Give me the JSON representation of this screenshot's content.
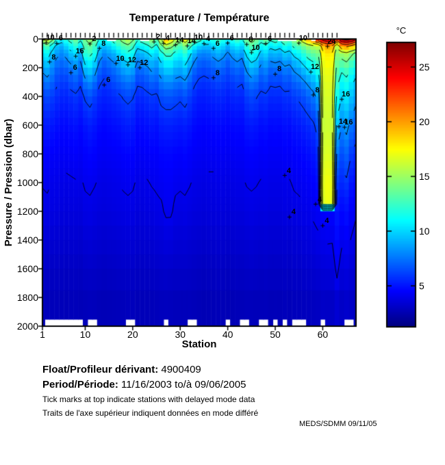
{
  "title": "Temperature / Température",
  "colorbar": {
    "unit_label": "°C",
    "tick_values": [
      5,
      10,
      15,
      20,
      25
    ],
    "tick_labels": [
      "5",
      "10",
      "15",
      "20",
      "25"
    ],
    "min": 1.25,
    "max": 27.25
  },
  "axes": {
    "x": {
      "label": "Station",
      "tick_values": [
        1,
        10,
        20,
        30,
        40,
        50,
        60
      ],
      "tick_labels": [
        "1",
        "10",
        "20",
        "30",
        "40",
        "50",
        "60"
      ],
      "min": 1,
      "max": 67
    },
    "y": {
      "label": "Pressure / Pression (dbar)",
      "tick_values": [
        0,
        200,
        400,
        600,
        800,
        1000,
        1200,
        1400,
        1600,
        1800,
        2000
      ],
      "tick_labels": [
        "0",
        "200",
        "400",
        "600",
        "800",
        "1000",
        "1200",
        "1400",
        "1600",
        "1800",
        "2000"
      ],
      "min": 0,
      "max": 2000
    }
  },
  "footer": {
    "float_label": "Float/Profileur dérivant:",
    "float_value": "4900409",
    "period_label": "Period/Période:",
    "period_value": "11/16/2003  to/à  09/06/2005",
    "note_en": "Tick marks at top indicate stations with delayed mode data",
    "note_fr": "Traits de l'axe supérieur indiquent données en mode différé",
    "credit": "MEDS/SDMM  09/11/05"
  },
  "chart_data": {
    "type": "heatmap",
    "title": "Temperature / Température",
    "xlabel": "Station",
    "ylabel": "Pressure / Pression (dbar)",
    "x_range": [
      1,
      67
    ],
    "y_range": [
      0,
      2000
    ],
    "value_range": [
      1.25,
      27.25
    ],
    "colormap": "jet",
    "contour_levels": [
      2,
      4,
      6,
      8,
      10,
      12,
      14,
      16,
      18,
      20,
      22,
      24,
      26
    ],
    "pressure_levels": [
      0,
      50,
      100,
      200,
      300,
      400,
      600,
      800,
      1000,
      1150,
      1200,
      1600,
      2000
    ],
    "temperatures": [
      [
        16.5,
        12,
        10.5,
        8.5,
        7,
        6,
        5,
        4.5,
        4.05,
        3.85,
        3.8,
        3.1,
        2.6
      ],
      [
        17,
        13,
        11,
        9,
        7.5,
        6.3,
        5.1,
        4.5,
        4.1,
        3.9,
        3.85,
        3.1,
        2.6
      ],
      [
        15,
        11,
        9.5,
        8,
        7,
        6,
        5,
        4.4,
        4,
        3.8,
        3.75,
        3,
        2.6
      ],
      [
        12,
        9.5,
        8.5,
        7,
        6.2,
        5.6,
        4.8,
        4.35,
        3.95,
        3.75,
        3.7,
        3,
        2.6
      ],
      [
        11,
        9,
        8,
        6.8,
        6,
        5.4,
        4.7,
        4.3,
        3.9,
        3.7,
        3.65,
        3,
        2.55
      ],
      [
        12,
        10,
        8.5,
        7,
        6,
        5.4,
        4.7,
        4.3,
        3.85,
        3.65,
        3.6,
        2.95,
        2.55
      ],
      [
        13,
        11,
        9.5,
        7.5,
        6.5,
        5.6,
        4.8,
        4.35,
        3.9,
        3.7,
        3.65,
        3,
        2.6
      ],
      [
        14,
        12,
        10,
        8,
        6.8,
        5.8,
        4.9,
        4.4,
        3.95,
        3.7,
        3.65,
        3,
        2.6
      ],
      [
        12.5,
        10.5,
        9,
        7.2,
        6.2,
        5.5,
        4.7,
        4.3,
        3.9,
        3.65,
        3.6,
        2.95,
        2.55
      ],
      [
        14,
        13,
        12,
        9.5,
        7.5,
        6.2,
        5,
        4.5,
        4.1,
        3.85,
        3.8,
        3.05,
        2.6
      ],
      [
        15,
        13.5,
        12.5,
        10,
        8,
        6.5,
        5.2,
        4.6,
        4.15,
        3.9,
        3.85,
        3.1,
        2.6
      ],
      [
        14,
        12.5,
        11.5,
        9,
        7.2,
        6,
        5,
        4.5,
        4.05,
        3.8,
        3.75,
        3.05,
        2.6
      ],
      [
        12,
        10,
        9,
        7.2,
        6.2,
        5.5,
        4.7,
        4.3,
        3.9,
        3.7,
        3.65,
        3,
        2.55
      ],
      [
        11.5,
        9.5,
        8,
        6.6,
        5.8,
        5.3,
        4.6,
        4.25,
        3.85,
        3.65,
        3.6,
        2.95,
        2.55
      ],
      [
        12,
        10,
        8.5,
        7,
        6,
        5.4,
        4.7,
        4.3,
        3.9,
        3.7,
        3.65,
        3,
        2.55
      ],
      [
        13,
        11,
        9,
        7.4,
        6.4,
        5.6,
        4.8,
        4.35,
        3.95,
        3.75,
        3.7,
        3,
        2.6
      ],
      [
        14,
        12,
        10,
        8,
        6.8,
        5.8,
        4.9,
        4.4,
        4,
        3.8,
        3.75,
        3.05,
        2.6
      ],
      [
        15,
        13,
        11,
        8.8,
        7.2,
        6.1,
        5.1,
        4.5,
        4.1,
        3.85,
        3.8,
        3.1,
        2.6
      ],
      [
        16,
        13.5,
        11.5,
        9.2,
        7.5,
        6.3,
        5.2,
        4.55,
        4.15,
        3.9,
        3.85,
        3.1,
        2.65
      ],
      [
        14.5,
        12.5,
        11,
        8.8,
        7.2,
        6.1,
        5.1,
        4.5,
        4.1,
        3.85,
        3.8,
        3.1,
        2.6
      ],
      [
        12.5,
        10.5,
        9,
        7.2,
        6.2,
        5.5,
        4.7,
        4.3,
        3.9,
        3.7,
        3.65,
        3,
        2.55
      ],
      [
        13,
        11,
        9.2,
        7.4,
        6.3,
        5.5,
        4.75,
        4.3,
        3.9,
        3.7,
        3.65,
        3,
        2.6
      ],
      [
        14,
        11.5,
        9.8,
        7.8,
        6.6,
        5.7,
        4.85,
        4.35,
        3.95,
        3.75,
        3.7,
        3,
        2.6
      ],
      [
        15,
        12.5,
        10.5,
        8.4,
        7,
        5.9,
        5,
        4.45,
        4.05,
        3.8,
        3.75,
        3.05,
        2.6
      ],
      [
        13.5,
        11.5,
        10,
        8,
        6.8,
        5.8,
        4.9,
        4.45,
        4.1,
        3.9,
        3.85,
        3.1,
        2.6
      ],
      [
        16,
        13.5,
        11.5,
        9.2,
        7.6,
        6.4,
        5.2,
        4.6,
        4.2,
        3.95,
        3.9,
        3.15,
        2.65
      ],
      [
        20,
        15,
        12.5,
        10,
        8,
        6.6,
        5.3,
        4.65,
        4.3,
        4.15,
        4.1,
        3.2,
        2.65
      ],
      [
        18,
        14.5,
        12.5,
        10,
        8,
        6.6,
        5.3,
        4.65,
        4.3,
        4.15,
        4.1,
        3.15,
        2.65
      ],
      [
        16,
        13.5,
        11.5,
        9.2,
        7.6,
        6.4,
        5.2,
        4.55,
        4.15,
        3.9,
        3.85,
        3.1,
        2.6
      ],
      [
        15,
        13,
        11,
        9,
        7.4,
        6.2,
        5.1,
        4.5,
        4.1,
        3.85,
        3.8,
        3.1,
        2.6
      ],
      [
        18,
        14,
        12,
        9.6,
        7.8,
        6.5,
        5.2,
        4.6,
        4.15,
        3.9,
        3.85,
        3.1,
        2.6
      ],
      [
        16,
        12.5,
        10.5,
        8.4,
        7,
        6,
        5,
        4.45,
        4.05,
        3.8,
        3.75,
        3.05,
        2.6
      ],
      [
        14,
        11,
        9,
        7.2,
        6.2,
        5.5,
        4.7,
        4.3,
        3.9,
        3.7,
        3.65,
        3,
        2.55
      ],
      [
        13,
        10,
        8,
        6.6,
        5.8,
        5.2,
        4.6,
        4.25,
        3.85,
        3.65,
        3.6,
        2.95,
        2.55
      ],
      [
        12,
        9.5,
        7.8,
        6.4,
        5.7,
        5.2,
        4.55,
        4.2,
        3.8,
        3.6,
        3.55,
        2.9,
        2.5
      ],
      [
        11.5,
        9.5,
        8,
        6.6,
        5.8,
        5.3,
        4.6,
        4.25,
        3.85,
        3.65,
        3.6,
        2.95,
        2.5
      ],
      [
        12,
        10,
        8.5,
        6.9,
        6,
        5.4,
        4.65,
        4.25,
        3.85,
        3.65,
        3.6,
        2.95,
        2.55
      ],
      [
        13,
        10.5,
        9,
        7.2,
        6.2,
        5.5,
        4.7,
        4.3,
        3.9,
        3.7,
        3.65,
        3,
        2.55
      ],
      [
        12,
        10,
        8.5,
        7,
        6,
        5.4,
        4.65,
        4.25,
        3.85,
        3.65,
        3.6,
        2.95,
        2.55
      ],
      [
        11,
        9,
        7.8,
        6.5,
        5.8,
        5.2,
        4.6,
        4.2,
        3.8,
        3.6,
        3.55,
        2.9,
        2.5
      ],
      [
        12,
        10,
        8.5,
        7,
        6,
        5.4,
        4.65,
        4.25,
        3.85,
        3.65,
        3.6,
        2.95,
        2.5
      ],
      [
        13,
        10.5,
        9,
        7.3,
        6.3,
        5.5,
        4.7,
        4.3,
        3.9,
        3.7,
        3.65,
        3,
        2.55
      ],
      [
        12,
        10,
        8.5,
        7,
        6.1,
        5.4,
        4.7,
        4.3,
        3.9,
        3.7,
        3.65,
        3,
        2.55
      ],
      [
        14,
        12,
        10.5,
        8.4,
        7,
        6,
        5,
        4.45,
        4.05,
        3.8,
        3.75,
        3.05,
        2.6
      ],
      [
        15,
        13,
        11.5,
        9.2,
        7.5,
        6.3,
        5.1,
        4.5,
        4.1,
        3.85,
        3.8,
        3.1,
        2.6
      ],
      [
        14,
        12.5,
        11,
        8.8,
        7.2,
        6.1,
        5,
        4.45,
        4.05,
        3.8,
        3.75,
        3.05,
        2.6
      ],
      [
        13,
        11,
        9.5,
        7.6,
        6.5,
        5.7,
        4.8,
        4.35,
        3.95,
        3.75,
        3.7,
        3,
        2.6
      ],
      [
        14,
        11.5,
        10,
        8,
        6.8,
        5.8,
        4.9,
        4.4,
        4,
        3.8,
        3.75,
        3.05,
        2.6
      ],
      [
        12.5,
        10.5,
        9,
        7.2,
        6.2,
        5.5,
        4.7,
        4.3,
        3.9,
        3.7,
        3.65,
        3,
        2.55
      ],
      [
        13,
        11,
        9.2,
        7.4,
        6.3,
        5.5,
        4.75,
        4.3,
        3.9,
        3.7,
        3.65,
        3,
        2.55
      ],
      [
        12.5,
        10.5,
        9,
        7.2,
        6.2,
        5.5,
        4.7,
        4.3,
        3.9,
        3.7,
        3.65,
        3,
        2.55
      ],
      [
        14,
        11.5,
        9.8,
        7.8,
        6.6,
        5.7,
        4.85,
        4.4,
        4,
        3.8,
        3.75,
        3.05,
        2.6
      ],
      [
        13.5,
        11,
        9.5,
        7.6,
        6.5,
        5.7,
        4.8,
        4.35,
        3.95,
        3.75,
        3.7,
        3,
        2.6
      ],
      [
        15,
        12.5,
        10.5,
        8.4,
        7,
        6,
        5,
        4.5,
        4.1,
        3.85,
        3.8,
        3.1,
        2.6
      ],
      [
        16,
        13,
        11,
        8.8,
        7.3,
        6.2,
        5.1,
        4.55,
        4.15,
        3.9,
        3.85,
        3.1,
        2.6
      ],
      [
        18,
        14,
        12,
        9.6,
        7.8,
        6.5,
        5.3,
        4.65,
        4.25,
        4,
        3.95,
        3.2,
        2.65
      ],
      [
        20,
        15,
        13,
        10.4,
        8.4,
        7,
        5.5,
        4.8,
        4.35,
        4.05,
        4,
        3.25,
        2.7
      ],
      [
        22,
        15.5,
        13.5,
        11,
        9,
        7.5,
        5.8,
        5,
        4.5,
        4.2,
        4.15,
        3.3,
        2.7
      ],
      [
        24,
        16,
        14,
        12,
        10,
        8.5,
        6.5,
        5.5,
        4.8,
        4.4,
        4.3,
        3.4,
        2.75
      ],
      [
        25.5,
        19,
        17.5,
        16.8,
        16.5,
        16.2,
        16,
        16.3,
        16.8,
        16.5,
        4.5,
        3.5,
        2.8
      ],
      [
        26,
        20,
        18,
        17.2,
        16.8,
        16.5,
        16.2,
        16.6,
        17.2,
        17,
        4.6,
        3.55,
        2.8
      ],
      [
        26,
        19.5,
        17.8,
        17,
        16.6,
        16.3,
        16,
        16.4,
        17,
        16.8,
        4.5,
        3.6,
        2.8
      ],
      [
        24,
        16,
        14.5,
        13.5,
        12.5,
        11.5,
        9.5,
        7.5,
        6,
        5.2,
        5,
        4.2,
        3
      ],
      [
        26.5,
        20,
        15,
        12.5,
        11,
        10,
        8,
        6.5,
        5.5,
        4.8,
        4.7,
        3.6,
        2.85
      ],
      [
        27,
        20.5,
        15.5,
        13,
        11.5,
        10.5,
        8.5,
        7,
        5.8,
        5,
        4.9,
        3.7,
        2.9
      ],
      [
        26.5,
        19.5,
        14.5,
        12,
        10.5,
        9.5,
        7.5,
        6,
        5,
        4.5,
        4.4,
        3.5,
        2.8
      ],
      [
        25,
        18,
        13.5,
        11,
        9.5,
        8.5,
        6.8,
        5.5,
        4.7,
        4.2,
        4.1,
        3.3,
        2.7
      ]
    ],
    "contour_labels": [
      {
        "station": 1.8,
        "pressure": 25,
        "label": "10"
      },
      {
        "station": 4,
        "pressure": 30,
        "label": "6"
      },
      {
        "station": 2.5,
        "pressure": 160,
        "label": "8"
      },
      {
        "station": 8,
        "pressure": 120,
        "label": "16"
      },
      {
        "station": 11,
        "pressure": 35,
        "label": "2"
      },
      {
        "station": 7,
        "pressure": 235,
        "label": "6"
      },
      {
        "station": 13,
        "pressure": 65,
        "label": "8"
      },
      {
        "station": 14,
        "pressure": 320,
        "label": "6"
      },
      {
        "station": 16.5,
        "pressure": 170,
        "label": "10"
      },
      {
        "station": 19,
        "pressure": 180,
        "label": "12"
      },
      {
        "station": 21.5,
        "pressure": 200,
        "label": "12"
      },
      {
        "station": 24.5,
        "pressure": 20,
        "label": "2"
      },
      {
        "station": 26.5,
        "pressure": 30,
        "label": "4"
      },
      {
        "station": 29,
        "pressure": 42,
        "label": "14"
      },
      {
        "station": 31.5,
        "pressure": 48,
        "label": "14"
      },
      {
        "station": 33,
        "pressure": 22,
        "label": "10"
      },
      {
        "station": 35,
        "pressure": 32,
        "label": "4"
      },
      {
        "station": 37,
        "pressure": 65,
        "label": "6"
      },
      {
        "station": 37,
        "pressure": 270,
        "label": "8"
      },
      {
        "station": 40,
        "pressure": 28,
        "label": "6"
      },
      {
        "station": 44,
        "pressure": 38,
        "label": "8"
      },
      {
        "station": 45,
        "pressure": 95,
        "label": "10"
      },
      {
        "station": 48,
        "pressure": 32,
        "label": "6"
      },
      {
        "station": 50,
        "pressure": 245,
        "label": "8"
      },
      {
        "station": 52,
        "pressure": 950,
        "label": "4"
      },
      {
        "station": 53,
        "pressure": 1240,
        "label": "4"
      },
      {
        "station": 55,
        "pressure": 28,
        "label": "10"
      },
      {
        "station": 57.5,
        "pressure": 230,
        "label": "12"
      },
      {
        "station": 58,
        "pressure": 390,
        "label": "8"
      },
      {
        "station": 58.5,
        "pressure": 1150,
        "label": "4"
      },
      {
        "station": 60,
        "pressure": 1300,
        "label": "4"
      },
      {
        "station": 61,
        "pressure": 52,
        "label": "24"
      },
      {
        "station": 63.4,
        "pressure": 610,
        "label": "14"
      },
      {
        "station": 64.6,
        "pressure": 615,
        "label": "16"
      },
      {
        "station": 64,
        "pressure": 420,
        "label": "16"
      }
    ],
    "delayed_mode_stations": [
      1,
      2,
      3,
      4,
      5,
      6,
      7,
      8,
      9,
      10,
      11,
      12,
      13,
      14,
      15,
      16,
      17,
      18,
      19,
      20,
      21,
      22,
      23,
      24,
      25,
      26,
      27,
      28,
      29,
      30,
      31,
      32,
      33,
      34,
      35,
      36,
      37,
      38,
      39,
      40,
      41,
      42,
      43,
      44,
      45,
      46,
      47,
      48,
      49,
      50,
      51,
      52,
      53,
      54,
      57,
      58,
      59,
      60,
      61,
      62,
      63
    ],
    "stations_not_reaching_bottom": [
      2,
      3,
      4,
      5,
      6,
      7,
      8,
      9,
      11,
      12,
      19,
      20,
      27,
      32,
      33,
      40,
      43,
      44,
      47,
      48,
      50,
      52,
      54,
      55,
      56,
      60,
      65,
      66
    ],
    "stations_missing_surface": [
      15,
      16,
      22,
      23,
      51,
      52,
      53,
      54,
      58
    ]
  }
}
